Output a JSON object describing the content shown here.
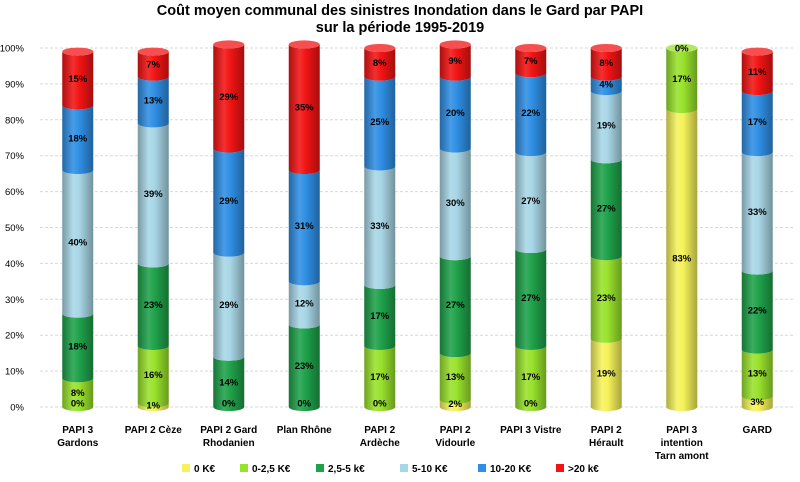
{
  "chart_data": {
    "type": "bar",
    "stacked": true,
    "normalized": true,
    "title": "Coût moyen communal des sinistres Inondation dans le Gard par PAPI",
    "subtitle": "sur la période 1995-2019",
    "xlabel": "",
    "ylabel": "",
    "ylim": [
      0,
      100
    ],
    "y_ticks": [
      "0%",
      "10%",
      "20%",
      "30%",
      "40%",
      "50%",
      "60%",
      "70%",
      "80%",
      "90%",
      "100%"
    ],
    "categories": [
      [
        "PAPI 3",
        "Gardons"
      ],
      [
        "PAPI 2 Cèze"
      ],
      [
        "PAPI 2 Gard",
        "Rhodanien"
      ],
      [
        "Plan Rhône"
      ],
      [
        "PAPI 2",
        "Ardèche"
      ],
      [
        "PAPI 2",
        "Vidourle"
      ],
      [
        "PAPI 3 Vistre"
      ],
      [
        "PAPI 2",
        "Hérault"
      ],
      [
        "PAPI 3",
        "intention",
        "Tarn amont"
      ],
      [
        "GARD"
      ]
    ],
    "legend_position": "bottom",
    "series": [
      {
        "name": "0 K€",
        "color": "#f5f25a",
        "values": [
          0,
          1,
          0,
          0,
          0,
          2,
          0,
          19,
          83,
          3
        ],
        "labels": [
          "0%",
          "1%",
          "0%",
          "0%",
          "0%",
          "2%",
          "0%",
          "19%",
          "83%",
          "3%"
        ]
      },
      {
        "name": "0-2,5 K€",
        "color": "#99e22c",
        "values": [
          8,
          16,
          0,
          0,
          17,
          13,
          17,
          23,
          17,
          13
        ],
        "labels": [
          "8%",
          "16%",
          "",
          "",
          "17%",
          "13%",
          "17%",
          "23%",
          "17%",
          "13%"
        ]
      },
      {
        "name": "2,5-5 k€",
        "color": "#1fa24a",
        "values": [
          18,
          23,
          14,
          23,
          17,
          27,
          27,
          27,
          0,
          22
        ],
        "labels": [
          "18%",
          "23%",
          "14%",
          "23%",
          "17%",
          "27%",
          "27%",
          "27%",
          "",
          "22%"
        ]
      },
      {
        "name": "5-10 K€",
        "color": "#a8d6e6",
        "values": [
          40,
          39,
          29,
          12,
          33,
          30,
          27,
          19,
          0,
          33
        ],
        "labels": [
          "40%",
          "39%",
          "29%",
          "12%",
          "33%",
          "30%",
          "27%",
          "19%",
          "",
          "33%"
        ]
      },
      {
        "name": "10-20 K€",
        "color": "#2f8fe4",
        "values": [
          18,
          13,
          29,
          31,
          25,
          20,
          22,
          4,
          0,
          17
        ],
        "labels": [
          "18%",
          "13%",
          "29%",
          "31%",
          "25%",
          "20%",
          "22%",
          "4%",
          "",
          "17%"
        ]
      },
      {
        "name": ">20 k€",
        "color": "#f21414",
        "values": [
          15,
          7,
          29,
          35,
          8,
          9,
          7,
          8,
          0,
          11
        ],
        "labels": [
          "15%",
          "7%",
          "29%",
          "35%",
          "8%",
          "9%",
          "7%",
          "8%",
          "0%",
          "11%"
        ]
      }
    ]
  }
}
